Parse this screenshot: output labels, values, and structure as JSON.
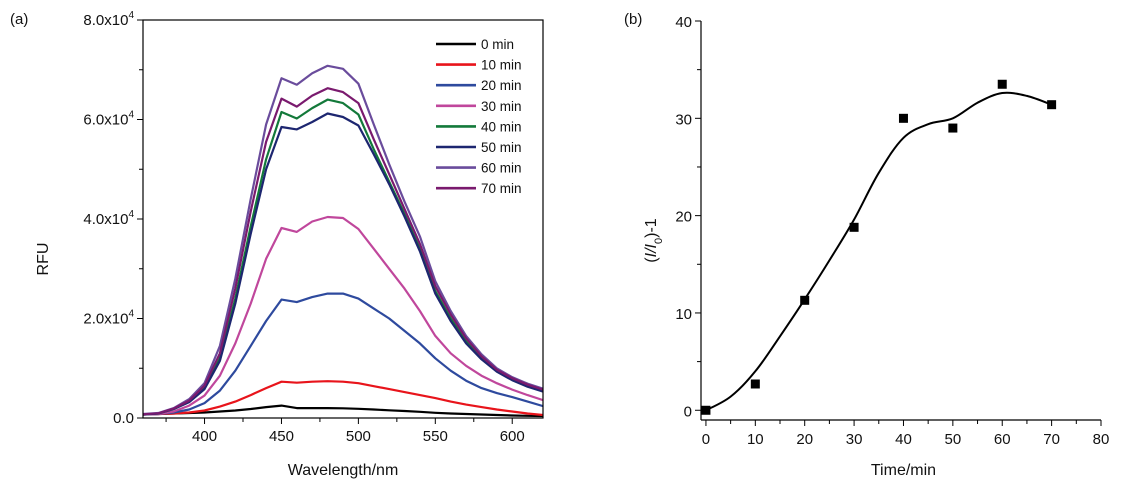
{
  "chart_data": [
    {
      "panel_label": "(a)",
      "type": "line",
      "title": "",
      "xlabel": "Wavelength/nm",
      "ylabel": "RFU",
      "xlim": [
        360,
        620
      ],
      "ylim": [
        0,
        80000
      ],
      "xticks": [
        400,
        450,
        500,
        550,
        600
      ],
      "xtick_labels": [
        "400",
        "450",
        "500",
        "550",
        "600"
      ],
      "yticks": [
        0,
        20000,
        40000,
        60000,
        80000
      ],
      "ytick_labels": [
        {
          "mantissa": "0.0",
          "exp": ""
        },
        {
          "mantissa": "2.0x10",
          "exp": "4"
        },
        {
          "mantissa": "4.0x10",
          "exp": "4"
        },
        {
          "mantissa": "6.0x10",
          "exp": "4"
        },
        {
          "mantissa": "8.0x10",
          "exp": "4"
        }
      ],
      "grid": false,
      "legend_position": "top-right",
      "x": [
        360,
        370,
        380,
        390,
        400,
        410,
        420,
        430,
        440,
        450,
        460,
        470,
        480,
        490,
        500,
        510,
        520,
        530,
        540,
        550,
        560,
        570,
        580,
        590,
        600,
        610,
        620
      ],
      "series": [
        {
          "name": "0 min",
          "color": "#000000",
          "values": [
            700,
            800,
            900,
            1000,
            1100,
            1300,
            1500,
            1800,
            2200,
            2500,
            2000,
            2000,
            2000,
            1950,
            1850,
            1700,
            1550,
            1400,
            1250,
            1050,
            900,
            800,
            700,
            600,
            500,
            450,
            400
          ]
        },
        {
          "name": "10 min",
          "color": "#e8141b",
          "values": [
            700,
            800,
            900,
            1100,
            1500,
            2300,
            3300,
            4600,
            6000,
            7300,
            7100,
            7300,
            7400,
            7300,
            7000,
            6400,
            5800,
            5200,
            4600,
            4000,
            3300,
            2700,
            2200,
            1700,
            1300,
            900,
            600
          ]
        },
        {
          "name": "20 min",
          "color": "#2e4a9e",
          "values": [
            700,
            800,
            1100,
            1700,
            3000,
            5500,
            9500,
            14500,
            19500,
            23800,
            23300,
            24300,
            25000,
            25000,
            24000,
            22000,
            20000,
            17500,
            15000,
            12000,
            9500,
            7500,
            6000,
            5000,
            4200,
            3300,
            2400
          ]
        },
        {
          "name": "30 min",
          "color": "#c0479c",
          "values": [
            700,
            800,
            1300,
            2500,
            4500,
            8500,
            15000,
            23000,
            32000,
            38200,
            37400,
            39500,
            40400,
            40200,
            38000,
            34000,
            30000,
            26000,
            21500,
            16500,
            13000,
            10500,
            8500,
            7000,
            5700,
            4600,
            3600
          ]
        },
        {
          "name": "40 min",
          "color": "#13793a",
          "values": [
            700,
            900,
            1800,
            3300,
            6000,
            12000,
            24000,
            38500,
            52000,
            61500,
            60200,
            62300,
            64000,
            63300,
            61000,
            54000,
            47500,
            41000,
            34000,
            25500,
            20000,
            15500,
            12000,
            9500,
            7800,
            6500,
            5500
          ]
        },
        {
          "name": "50 min",
          "color": "#1d2670",
          "values": [
            700,
            900,
            1800,
            3200,
            5800,
            11500,
            23000,
            37000,
            50000,
            58500,
            58000,
            59500,
            61200,
            60500,
            58800,
            53000,
            47000,
            40500,
            33500,
            25000,
            19500,
            15000,
            11800,
            9300,
            7600,
            6300,
            5300
          ]
        },
        {
          "name": "60 min",
          "color": "#6a4c9c",
          "values": [
            800,
            1000,
            2000,
            3800,
            7000,
            14500,
            28000,
            44000,
            59000,
            68300,
            67000,
            69300,
            70800,
            70200,
            67200,
            59000,
            51000,
            43500,
            36500,
            27500,
            21500,
            16500,
            12800,
            10000,
            8200,
            6900,
            5900
          ]
        },
        {
          "name": "70 min",
          "color": "#7a1a6e",
          "values": [
            750,
            950,
            1900,
            3500,
            6500,
            13000,
            26000,
            41500,
            55500,
            64200,
            62600,
            64800,
            66300,
            65500,
            63300,
            56000,
            49000,
            42000,
            35000,
            26500,
            20800,
            16000,
            12400,
            9700,
            8000,
            6700,
            5700
          ]
        }
      ]
    },
    {
      "panel_label": "(b)",
      "type": "scatter",
      "title": "",
      "xlabel": "Time/min",
      "ylabel": "(I/I0)-1",
      "ylabel_parts": {
        "open": "(",
        "i": "I",
        "slash": "/",
        "i0": "I",
        "sub": "0",
        "close": ")-1"
      },
      "xlim": [
        -1,
        80
      ],
      "ylim": [
        -1,
        40
      ],
      "xticks": [
        0,
        10,
        20,
        30,
        40,
        50,
        60,
        70,
        80
      ],
      "xtick_labels": [
        "0",
        "10",
        "20",
        "30",
        "40",
        "50",
        "60",
        "70",
        "80"
      ],
      "yticks": [
        0,
        10,
        20,
        30,
        40
      ],
      "ytick_labels": [
        "0",
        "10",
        "20",
        "30",
        "40"
      ],
      "grid": false,
      "legend_position": "none",
      "points": {
        "name": "data",
        "marker": "square",
        "color": "#000000",
        "x": [
          0,
          10,
          20,
          30,
          40,
          50,
          60,
          70
        ],
        "y": [
          0,
          2.7,
          11.3,
          18.8,
          30.0,
          29.0,
          33.5,
          31.4
        ]
      },
      "fit_curve": {
        "name": "smooth fit",
        "color": "#000000",
        "x": [
          0,
          5,
          10,
          15,
          20,
          25,
          30,
          35,
          40,
          45,
          50,
          55,
          60,
          65,
          70
        ],
        "y": [
          0,
          1.4,
          4.0,
          7.6,
          11.4,
          15.4,
          19.6,
          24.4,
          28.0,
          29.4,
          30.0,
          31.6,
          32.6,
          32.3,
          31.4
        ]
      }
    }
  ]
}
